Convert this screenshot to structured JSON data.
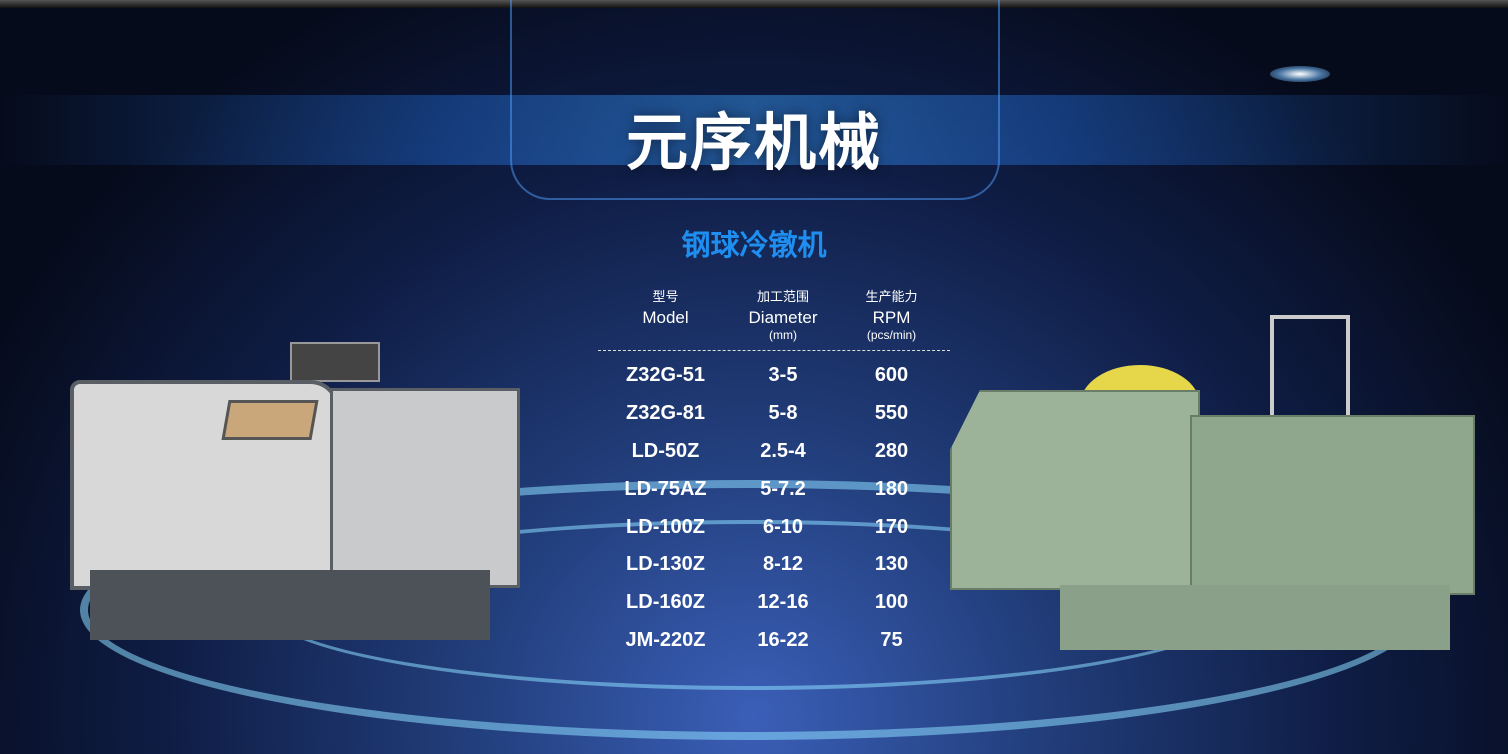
{
  "title": "元序机械",
  "subtitle": "钢球冷镦机",
  "table": {
    "headers": [
      {
        "zh": "型号",
        "en": "Model",
        "unit": ""
      },
      {
        "zh": "加工范围",
        "en": "Diameter",
        "unit": "(mm)"
      },
      {
        "zh": "生产能力",
        "en": "RPM",
        "unit": "(pcs/min)"
      }
    ],
    "rows": [
      [
        "Z32G-51",
        "3-5",
        "600"
      ],
      [
        "Z32G-81",
        "5-8",
        "550"
      ],
      [
        "LD-50Z",
        "2.5-4",
        "280"
      ],
      [
        "LD-75AZ",
        "5-7.2",
        "180"
      ],
      [
        "LD-100Z",
        "6-10",
        "170"
      ],
      [
        "LD-130Z",
        "8-12",
        "130"
      ],
      [
        "LD-160Z",
        "12-16",
        "100"
      ],
      [
        "JM-220Z",
        "16-22",
        "75"
      ]
    ]
  },
  "colors": {
    "subtitle": "#1e8ff0",
    "left_machine": "#d8d8d8",
    "right_machine": "#9cb39a"
  }
}
